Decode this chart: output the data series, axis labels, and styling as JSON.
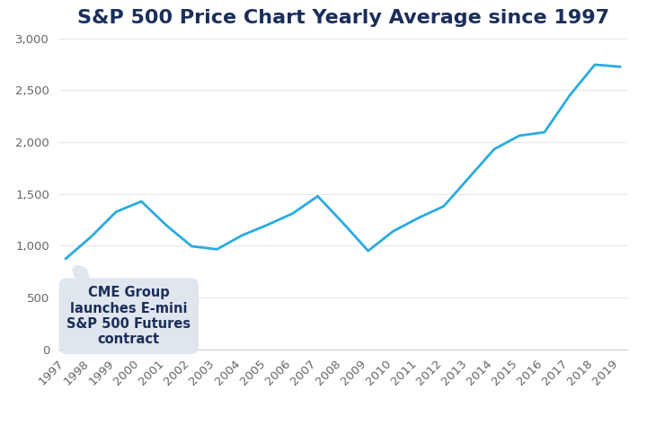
{
  "title": "S&P 500 Price Chart Yearly Average since 1997",
  "years": [
    1997,
    1998,
    1999,
    2000,
    2001,
    2002,
    2003,
    2004,
    2005,
    2006,
    2007,
    2008,
    2009,
    2010,
    2011,
    2012,
    2013,
    2014,
    2015,
    2016,
    2017,
    2018,
    2019
  ],
  "values": [
    875,
    1085,
    1327,
    1427,
    1194,
    994,
    965,
    1100,
    1200,
    1310,
    1477,
    1220,
    950,
    1140,
    1268,
    1380,
    1655,
    1930,
    2061,
    2094,
    2449,
    2746,
    2726
  ],
  "line_color": "#29abe2",
  "background_color": "#ffffff",
  "title_color": "#1a2e5a",
  "axis_color": "#666666",
  "annotation_text": "CME Group\nlaunches E-mini\nS&P 500 Futures\ncontract",
  "annotation_box_color": "#e0e6ee",
  "ylim": [
    0,
    3000
  ],
  "yticks": [
    0,
    500,
    1000,
    1500,
    2000,
    2500,
    3000
  ],
  "title_fontsize": 16,
  "tick_fontsize": 9.5,
  "line_width": 2.0
}
